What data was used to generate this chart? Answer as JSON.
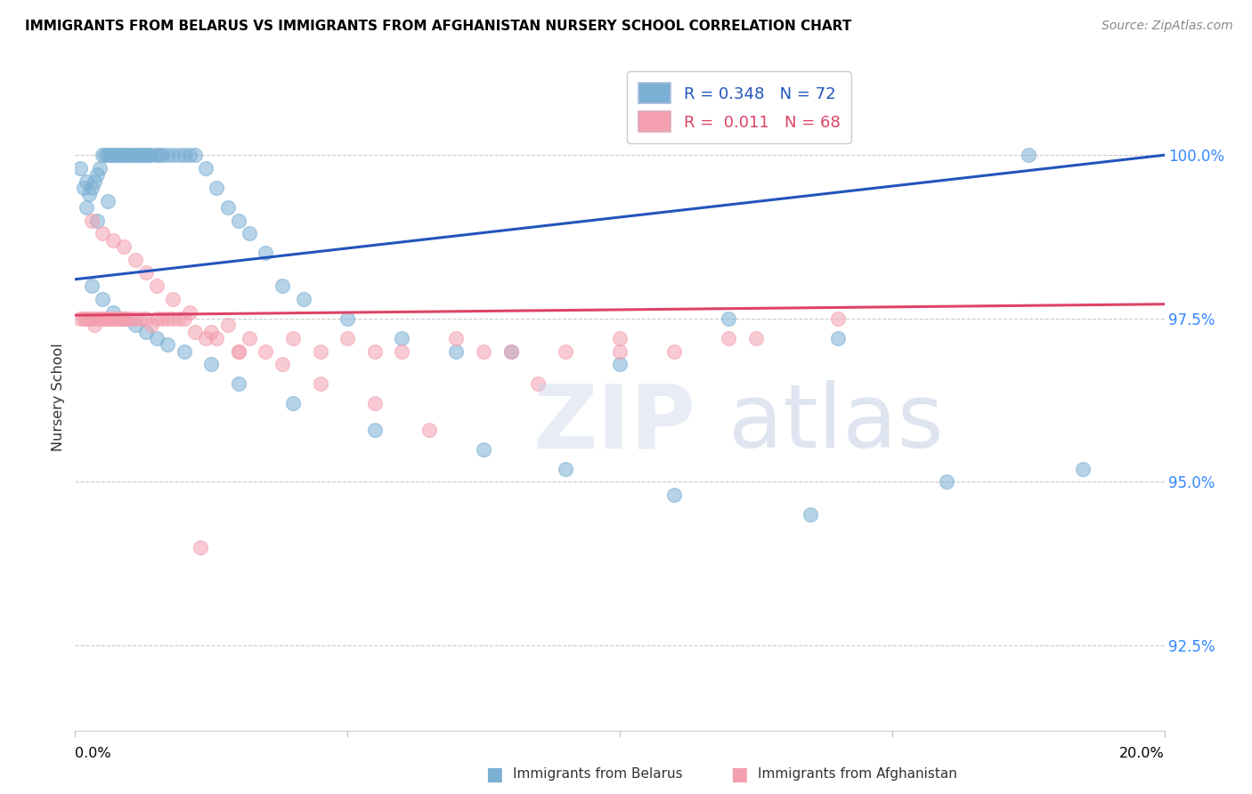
{
  "title": "IMMIGRANTS FROM BELARUS VS IMMIGRANTS FROM AFGHANISTAN NURSERY SCHOOL CORRELATION CHART",
  "source": "Source: ZipAtlas.com",
  "ylabel": "Nursery School",
  "yticks": [
    92.5,
    95.0,
    97.5,
    100.0
  ],
  "ytick_labels": [
    "92.5%",
    "95.0%",
    "97.5%",
    "100.0%"
  ],
  "xlim": [
    0.0,
    20.0
  ],
  "ylim": [
    91.2,
    101.4
  ],
  "blue_color": "#7bafd4",
  "pink_color": "#f4a0b0",
  "blue_line_color": "#2255bb",
  "pink_line_color": "#dd4466",
  "bottom_legend_blue": "Immigrants from Belarus",
  "bottom_legend_pink": "Immigrants from Afghanistan",
  "blue_scatter_x": [
    0.1,
    0.15,
    0.2,
    0.25,
    0.3,
    0.35,
    0.4,
    0.45,
    0.5,
    0.55,
    0.6,
    0.65,
    0.7,
    0.75,
    0.8,
    0.85,
    0.9,
    0.95,
    1.0,
    1.05,
    1.1,
    1.15,
    1.2,
    1.25,
    1.3,
    1.35,
    1.4,
    1.5,
    1.55,
    1.6,
    1.7,
    1.8,
    1.9,
    2.0,
    2.1,
    2.2,
    2.4,
    2.6,
    2.8,
    3.0,
    3.2,
    3.5,
    3.8,
    4.2,
    5.0,
    6.0,
    7.0,
    8.0,
    10.0,
    12.0,
    14.0,
    17.5,
    0.3,
    0.5,
    0.7,
    0.9,
    1.1,
    1.3,
    1.5,
    1.7,
    2.0,
    2.5,
    3.0,
    4.0,
    5.5,
    7.5,
    9.0,
    11.0,
    13.5,
    16.0,
    18.5,
    0.2,
    0.4,
    0.6
  ],
  "blue_scatter_y": [
    99.8,
    99.5,
    99.6,
    99.4,
    99.5,
    99.6,
    99.7,
    99.8,
    100.0,
    100.0,
    100.0,
    100.0,
    100.0,
    100.0,
    100.0,
    100.0,
    100.0,
    100.0,
    100.0,
    100.0,
    100.0,
    100.0,
    100.0,
    100.0,
    100.0,
    100.0,
    100.0,
    100.0,
    100.0,
    100.0,
    100.0,
    100.0,
    100.0,
    100.0,
    100.0,
    100.0,
    99.8,
    99.5,
    99.2,
    99.0,
    98.8,
    98.5,
    98.0,
    97.8,
    97.5,
    97.2,
    97.0,
    97.0,
    96.8,
    97.5,
    97.2,
    100.0,
    98.0,
    97.8,
    97.6,
    97.5,
    97.4,
    97.3,
    97.2,
    97.1,
    97.0,
    96.8,
    96.5,
    96.2,
    95.8,
    95.5,
    95.2,
    94.8,
    94.5,
    95.0,
    95.2,
    99.2,
    99.0,
    99.3
  ],
  "pink_scatter_x": [
    0.1,
    0.15,
    0.2,
    0.25,
    0.3,
    0.35,
    0.4,
    0.45,
    0.5,
    0.55,
    0.6,
    0.65,
    0.7,
    0.75,
    0.8,
    0.85,
    0.9,
    0.95,
    1.0,
    1.1,
    1.2,
    1.3,
    1.4,
    1.5,
    1.6,
    1.7,
    1.8,
    1.9,
    2.0,
    2.2,
    2.4,
    2.6,
    2.8,
    3.0,
    3.2,
    3.5,
    4.0,
    4.5,
    5.0,
    5.5,
    6.0,
    7.0,
    8.0,
    9.0,
    10.0,
    11.0,
    12.5,
    14.0,
    0.3,
    0.5,
    0.7,
    0.9,
    1.1,
    1.3,
    1.5,
    1.8,
    2.1,
    2.5,
    3.0,
    3.8,
    4.5,
    5.5,
    6.5,
    7.5,
    8.5,
    10.0,
    12.0,
    2.3
  ],
  "pink_scatter_y": [
    97.5,
    97.5,
    97.5,
    97.5,
    97.5,
    97.4,
    97.5,
    97.5,
    97.5,
    97.5,
    97.5,
    97.5,
    97.5,
    97.5,
    97.5,
    97.5,
    97.5,
    97.5,
    97.5,
    97.5,
    97.5,
    97.5,
    97.4,
    97.5,
    97.5,
    97.5,
    97.5,
    97.5,
    97.5,
    97.3,
    97.2,
    97.2,
    97.4,
    97.0,
    97.2,
    97.0,
    97.2,
    97.0,
    97.2,
    97.0,
    97.0,
    97.2,
    97.0,
    97.0,
    97.2,
    97.0,
    97.2,
    97.5,
    99.0,
    98.8,
    98.7,
    98.6,
    98.4,
    98.2,
    98.0,
    97.8,
    97.6,
    97.3,
    97.0,
    96.8,
    96.5,
    96.2,
    95.8,
    97.0,
    96.5,
    97.0,
    97.2,
    94.0
  ],
  "blue_trendline_x": [
    0.0,
    20.0
  ],
  "blue_trendline_y": [
    98.1,
    100.0
  ],
  "pink_trendline_x": [
    0.0,
    20.0
  ],
  "pink_trendline_y": [
    97.55,
    97.72
  ]
}
